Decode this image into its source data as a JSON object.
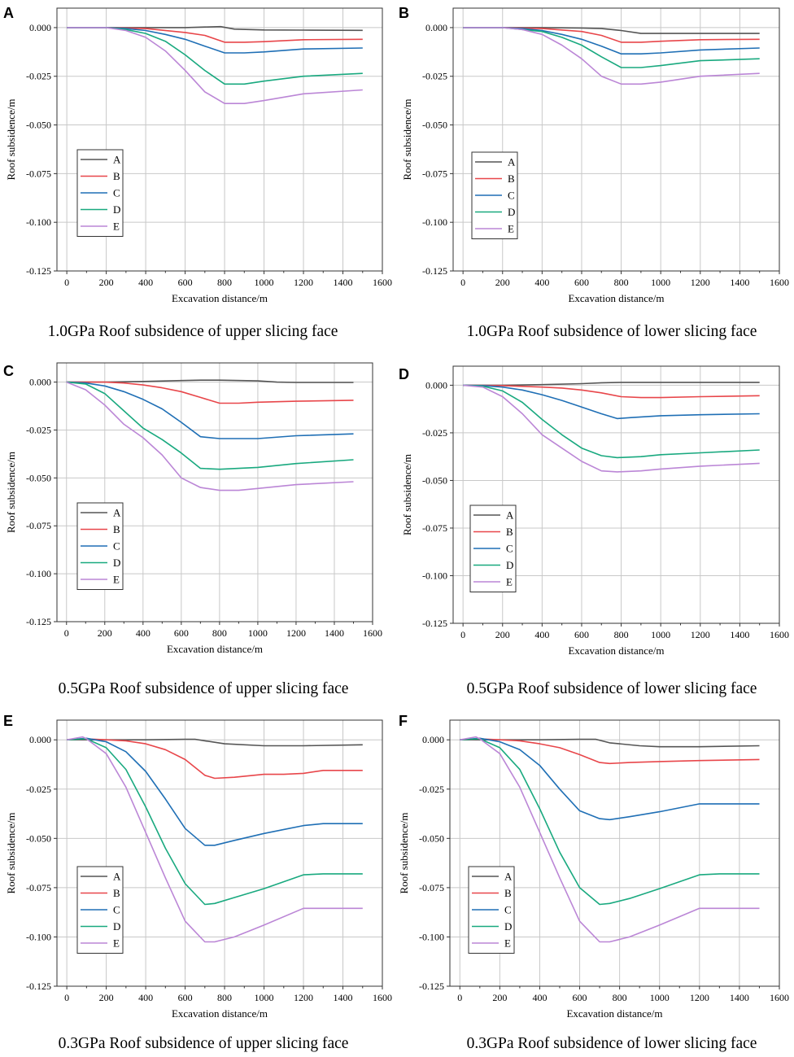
{
  "figure": {
    "xlabel": "Excavation distance/m",
    "ylabel": "Roof subsidence/m",
    "xlim": [
      -50,
      1600
    ],
    "ylim": [
      -0.125,
      0.01
    ],
    "xticks": [
      0,
      200,
      400,
      600,
      800,
      1000,
      1200,
      1400,
      1600
    ],
    "yticks": [
      0.0,
      -0.025,
      -0.05,
      -0.075,
      -0.1,
      -0.125
    ],
    "ytick_labels": [
      "0.000",
      "-0.025",
      "-0.050",
      "-0.075",
      "-0.100",
      "-0.125"
    ],
    "series_colors": {
      "A": "#555555",
      "B": "#e8464a",
      "C": "#1f6fb5",
      "D": "#19a97f",
      "E": "#bb86d6"
    }
  },
  "chart_data": [
    {
      "type": "line",
      "panel": "A",
      "title": "1.0GPa Roof subsidence of upper slicing face",
      "xlabel": "Excavation distance/m",
      "ylabel": "Roof subsidence/m",
      "xlim": [
        -50,
        1600
      ],
      "ylim": [
        -0.125,
        0.01
      ],
      "legend": [
        "A",
        "B",
        "C",
        "D",
        "E"
      ],
      "series": [
        {
          "name": "A",
          "x": [
            0,
            200,
            400,
            600,
            700,
            780,
            850,
            1000,
            1200,
            1500
          ],
          "y": [
            0,
            0,
            0,
            0,
            0.0003,
            0.0005,
            -0.0008,
            -0.0012,
            -0.0013,
            -0.0014
          ]
        },
        {
          "name": "B",
          "x": [
            0,
            200,
            400,
            600,
            700,
            800,
            900,
            1000,
            1200,
            1500
          ],
          "y": [
            0,
            0,
            -0.0005,
            -0.0025,
            -0.004,
            -0.0075,
            -0.0075,
            -0.0072,
            -0.0062,
            -0.006
          ]
        },
        {
          "name": "C",
          "x": [
            0,
            200,
            300,
            400,
            500,
            600,
            700,
            800,
            900,
            1000,
            1200,
            1500
          ],
          "y": [
            0,
            0,
            -0.0005,
            -0.0015,
            -0.0035,
            -0.006,
            -0.0095,
            -0.013,
            -0.013,
            -0.0125,
            -0.011,
            -0.0105
          ]
        },
        {
          "name": "D",
          "x": [
            0,
            200,
            300,
            400,
            500,
            600,
            700,
            800,
            900,
            1000,
            1200,
            1500
          ],
          "y": [
            0,
            0,
            -0.001,
            -0.003,
            -0.007,
            -0.014,
            -0.022,
            -0.029,
            -0.029,
            -0.0275,
            -0.025,
            -0.0235
          ]
        },
        {
          "name": "E",
          "x": [
            0,
            200,
            300,
            400,
            500,
            600,
            700,
            800,
            900,
            1000,
            1200,
            1500
          ],
          "y": [
            0,
            0,
            -0.0015,
            -0.005,
            -0.012,
            -0.022,
            -0.033,
            -0.039,
            -0.039,
            -0.0375,
            -0.034,
            -0.032
          ]
        }
      ]
    },
    {
      "type": "line",
      "panel": "B",
      "title": "1.0GPa Roof subsidence of lower slicing face",
      "xlabel": "Excavation distance/m",
      "ylabel": "Roof subsidence/m",
      "xlim": [
        -50,
        1600
      ],
      "ylim": [
        -0.125,
        0.01
      ],
      "legend": [
        "A",
        "B",
        "C",
        "D",
        "E"
      ],
      "series": [
        {
          "name": "A",
          "x": [
            0,
            200,
            400,
            600,
            700,
            800,
            900,
            1000,
            1200,
            1500
          ],
          "y": [
            0,
            0,
            0,
            -0.0002,
            -0.0005,
            -0.0015,
            -0.003,
            -0.003,
            -0.003,
            -0.003
          ]
        },
        {
          "name": "B",
          "x": [
            0,
            200,
            400,
            600,
            700,
            800,
            900,
            1000,
            1200,
            1500
          ],
          "y": [
            0,
            0,
            -0.0005,
            -0.002,
            -0.004,
            -0.0075,
            -0.0075,
            -0.007,
            -0.0062,
            -0.006
          ]
        },
        {
          "name": "C",
          "x": [
            0,
            200,
            300,
            400,
            500,
            600,
            700,
            800,
            900,
            1000,
            1200,
            1500
          ],
          "y": [
            0,
            0,
            -0.0005,
            -0.0015,
            -0.0035,
            -0.006,
            -0.0095,
            -0.0135,
            -0.0135,
            -0.013,
            -0.0115,
            -0.0105
          ]
        },
        {
          "name": "D",
          "x": [
            0,
            200,
            300,
            400,
            500,
            600,
            700,
            800,
            900,
            1000,
            1200,
            1500
          ],
          "y": [
            0,
            0,
            -0.001,
            -0.002,
            -0.005,
            -0.009,
            -0.015,
            -0.0205,
            -0.0205,
            -0.0195,
            -0.017,
            -0.016
          ]
        },
        {
          "name": "E",
          "x": [
            0,
            200,
            300,
            400,
            500,
            600,
            700,
            800,
            900,
            1000,
            1200,
            1500
          ],
          "y": [
            0,
            0,
            -0.001,
            -0.0035,
            -0.009,
            -0.016,
            -0.025,
            -0.029,
            -0.029,
            -0.028,
            -0.025,
            -0.0235
          ]
        }
      ]
    },
    {
      "type": "line",
      "panel": "C",
      "title": "0.5GPa Roof subsidence of upper slicing face",
      "xlabel": "Excavation distance/m",
      "ylabel": "Roof subsidence/m",
      "xlim": [
        -50,
        1600
      ],
      "ylim": [
        -0.125,
        0.01
      ],
      "legend": [
        "A",
        "B",
        "C",
        "D",
        "E"
      ],
      "series": [
        {
          "name": "A",
          "x": [
            0,
            200,
            400,
            600,
            700,
            800,
            1000,
            1100,
            1200,
            1500
          ],
          "y": [
            0,
            0,
            0.0003,
            0.0008,
            0.001,
            0.001,
            0.0006,
            0,
            -0.0002,
            -0.0002
          ]
        },
        {
          "name": "B",
          "x": [
            0,
            200,
            300,
            400,
            500,
            600,
            700,
            800,
            900,
            1000,
            1200,
            1500
          ],
          "y": [
            0,
            0,
            -0.0005,
            -0.0015,
            -0.003,
            -0.005,
            -0.008,
            -0.011,
            -0.011,
            -0.0105,
            -0.01,
            -0.0095
          ]
        },
        {
          "name": "C",
          "x": [
            0,
            100,
            200,
            300,
            400,
            500,
            600,
            700,
            800,
            900,
            1000,
            1200,
            1500
          ],
          "y": [
            0,
            -0.0005,
            -0.002,
            -0.005,
            -0.009,
            -0.014,
            -0.021,
            -0.0285,
            -0.0295,
            -0.0295,
            -0.0295,
            -0.028,
            -0.027
          ]
        },
        {
          "name": "D",
          "x": [
            0,
            100,
            200,
            300,
            400,
            500,
            600,
            700,
            800,
            900,
            1000,
            1200,
            1500
          ],
          "y": [
            0,
            -0.001,
            -0.006,
            -0.015,
            -0.024,
            -0.03,
            -0.037,
            -0.045,
            -0.0455,
            -0.045,
            -0.0445,
            -0.0425,
            -0.0405
          ]
        },
        {
          "name": "E",
          "x": [
            0,
            100,
            200,
            300,
            400,
            500,
            600,
            700,
            800,
            900,
            1000,
            1200,
            1500
          ],
          "y": [
            0,
            -0.004,
            -0.012,
            -0.022,
            -0.029,
            -0.038,
            -0.05,
            -0.055,
            -0.0565,
            -0.0565,
            -0.0555,
            -0.0535,
            -0.052
          ]
        }
      ]
    },
    {
      "type": "line",
      "panel": "D",
      "title": "0.5GPa Roof subsidence of lower slicing face",
      "xlabel": "Excavation distance/m",
      "ylabel": "Roof subsidence/m",
      "xlim": [
        -50,
        1600
      ],
      "ylim": [
        -0.125,
        0.01
      ],
      "legend": [
        "A",
        "B",
        "C",
        "D",
        "E"
      ],
      "series": [
        {
          "name": "A",
          "x": [
            0,
            200,
            400,
            600,
            700,
            800,
            1000,
            1200,
            1500
          ],
          "y": [
            0,
            0,
            0.0003,
            0.0008,
            0.0013,
            0.0015,
            0.0015,
            0.0015,
            0.0015
          ]
        },
        {
          "name": "B",
          "x": [
            0,
            200,
            400,
            500,
            600,
            700,
            800,
            900,
            1000,
            1200,
            1500
          ],
          "y": [
            0,
            -0.0002,
            -0.001,
            -0.0015,
            -0.0025,
            -0.004,
            -0.006,
            -0.0065,
            -0.0065,
            -0.006,
            -0.0055
          ]
        },
        {
          "name": "C",
          "x": [
            0,
            100,
            200,
            300,
            400,
            500,
            600,
            700,
            780,
            850,
            1000,
            1200,
            1500
          ],
          "y": [
            0,
            -0.0002,
            -0.001,
            -0.0025,
            -0.005,
            -0.008,
            -0.0115,
            -0.015,
            -0.0175,
            -0.017,
            -0.016,
            -0.0155,
            -0.015
          ]
        },
        {
          "name": "D",
          "x": [
            0,
            100,
            200,
            300,
            400,
            500,
            600,
            700,
            780,
            900,
            1000,
            1200,
            1500
          ],
          "y": [
            0,
            -0.0005,
            -0.003,
            -0.009,
            -0.018,
            -0.026,
            -0.033,
            -0.037,
            -0.038,
            -0.0375,
            -0.0365,
            -0.0355,
            -0.034
          ]
        },
        {
          "name": "E",
          "x": [
            0,
            100,
            200,
            300,
            400,
            500,
            600,
            700,
            780,
            900,
            1000,
            1200,
            1500
          ],
          "y": [
            0,
            -0.001,
            -0.006,
            -0.015,
            -0.026,
            -0.033,
            -0.04,
            -0.045,
            -0.0455,
            -0.045,
            -0.044,
            -0.0425,
            -0.041
          ]
        }
      ]
    },
    {
      "type": "line",
      "panel": "E",
      "title": "0.3GPa Roof subsidence of upper slicing face",
      "xlabel": "Excavation distance/m",
      "ylabel": "Roof subsidence/m",
      "xlim": [
        -50,
        1600
      ],
      "ylim": [
        -0.125,
        0.01
      ],
      "legend": [
        "A",
        "B",
        "C",
        "D",
        "E"
      ],
      "series": [
        {
          "name": "A",
          "x": [
            0,
            200,
            400,
            600,
            650,
            700,
            800,
            1000,
            1200,
            1500
          ],
          "y": [
            0,
            0,
            0,
            0.0003,
            0.0003,
            -0.0005,
            -0.002,
            -0.003,
            -0.003,
            -0.0025
          ]
        },
        {
          "name": "B",
          "x": [
            0,
            100,
            200,
            300,
            400,
            500,
            600,
            700,
            750,
            850,
            1000,
            1100,
            1200,
            1300,
            1500
          ],
          "y": [
            0,
            0.0005,
            0,
            -0.0005,
            -0.002,
            -0.005,
            -0.01,
            -0.018,
            -0.0195,
            -0.019,
            -0.0175,
            -0.0175,
            -0.017,
            -0.0155,
            -0.0155
          ]
        },
        {
          "name": "C",
          "x": [
            0,
            100,
            200,
            300,
            400,
            500,
            600,
            700,
            750,
            850,
            1000,
            1200,
            1300,
            1500
          ],
          "y": [
            0,
            0.0008,
            -0.001,
            -0.006,
            -0.016,
            -0.03,
            -0.045,
            -0.0535,
            -0.0535,
            -0.051,
            -0.0475,
            -0.0435,
            -0.0425,
            -0.0425
          ]
        },
        {
          "name": "D",
          "x": [
            0,
            100,
            200,
            300,
            400,
            500,
            600,
            700,
            750,
            850,
            1000,
            1200,
            1300,
            1500
          ],
          "y": [
            0,
            0.0005,
            -0.004,
            -0.015,
            -0.034,
            -0.055,
            -0.073,
            -0.0835,
            -0.083,
            -0.08,
            -0.0755,
            -0.0685,
            -0.068,
            -0.068
          ]
        },
        {
          "name": "E",
          "x": [
            0,
            80,
            100,
            200,
            300,
            400,
            500,
            600,
            700,
            750,
            850,
            1000,
            1200,
            1300,
            1500
          ],
          "y": [
            0,
            0.0015,
            0.0005,
            -0.007,
            -0.024,
            -0.047,
            -0.07,
            -0.092,
            -0.1025,
            -0.1025,
            -0.1,
            -0.094,
            -0.0855,
            -0.0855,
            -0.0855
          ]
        }
      ]
    },
    {
      "type": "line",
      "panel": "F",
      "title": "0.3GPa Roof subsidence of lower slicing face",
      "xlabel": "Excavation distance/m",
      "ylabel": "Roof subsidence/m",
      "xlim": [
        -50,
        1600
      ],
      "ylim": [
        -0.125,
        0.01
      ],
      "legend": [
        "A",
        "B",
        "C",
        "D",
        "E"
      ],
      "series": [
        {
          "name": "A",
          "x": [
            0,
            200,
            400,
            600,
            680,
            750,
            900,
            1000,
            1200,
            1500
          ],
          "y": [
            0,
            0,
            0,
            0.0003,
            0.0003,
            -0.0015,
            -0.003,
            -0.0035,
            -0.0035,
            -0.003
          ]
        },
        {
          "name": "B",
          "x": [
            0,
            100,
            200,
            300,
            400,
            500,
            600,
            700,
            750,
            850,
            1000,
            1200,
            1500
          ],
          "y": [
            0,
            0.0005,
            0,
            -0.0005,
            -0.002,
            -0.004,
            -0.0075,
            -0.0115,
            -0.012,
            -0.0115,
            -0.011,
            -0.0105,
            -0.01
          ]
        },
        {
          "name": "C",
          "x": [
            0,
            100,
            200,
            300,
            400,
            500,
            600,
            700,
            750,
            850,
            1000,
            1200,
            1300,
            1500
          ],
          "y": [
            0,
            0.0008,
            -0.001,
            -0.005,
            -0.013,
            -0.025,
            -0.036,
            -0.04,
            -0.0405,
            -0.039,
            -0.0365,
            -0.0325,
            -0.0325,
            -0.0325
          ]
        },
        {
          "name": "D",
          "x": [
            0,
            100,
            200,
            300,
            400,
            500,
            600,
            700,
            750,
            850,
            1000,
            1200,
            1300,
            1500
          ],
          "y": [
            0,
            0.0005,
            -0.004,
            -0.015,
            -0.035,
            -0.057,
            -0.075,
            -0.0835,
            -0.083,
            -0.0805,
            -0.0755,
            -0.0685,
            -0.068,
            -0.068
          ]
        },
        {
          "name": "E",
          "x": [
            0,
            80,
            100,
            200,
            300,
            400,
            500,
            600,
            700,
            750,
            850,
            1000,
            1200,
            1300,
            1500
          ],
          "y": [
            0,
            0.0015,
            0.0005,
            -0.007,
            -0.024,
            -0.047,
            -0.07,
            -0.092,
            -0.1025,
            -0.1025,
            -0.1,
            -0.094,
            -0.0855,
            -0.0855,
            -0.0855
          ]
        }
      ]
    }
  ]
}
